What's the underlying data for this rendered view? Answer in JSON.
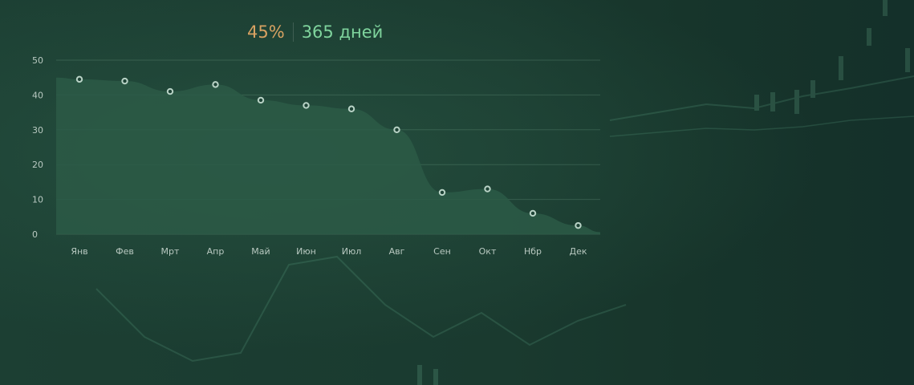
{
  "header": {
    "percent": "45%",
    "period": "365 дней"
  },
  "colors": {
    "percent": "#d8a262",
    "period": "#7fd49d",
    "area": "#2b5a47",
    "point_stroke": "#b9d3c6"
  },
  "chart_data": {
    "type": "area",
    "title": "",
    "xlabel": "",
    "ylabel": "",
    "categories": [
      "Янв",
      "Фев",
      "Мрт",
      "Апр",
      "Май",
      "Июн",
      "Июл",
      "Авг",
      "Сен",
      "Окт",
      "Нбр",
      "Дек"
    ],
    "values": [
      44.5,
      44,
      41,
      43,
      38.5,
      37,
      36,
      30,
      12,
      13,
      6,
      2.5
    ],
    "ylim": [
      0,
      50
    ],
    "yticks": [
      "0",
      "10",
      "20",
      "30",
      "40",
      "50"
    ],
    "grid": true,
    "legend": "none"
  }
}
